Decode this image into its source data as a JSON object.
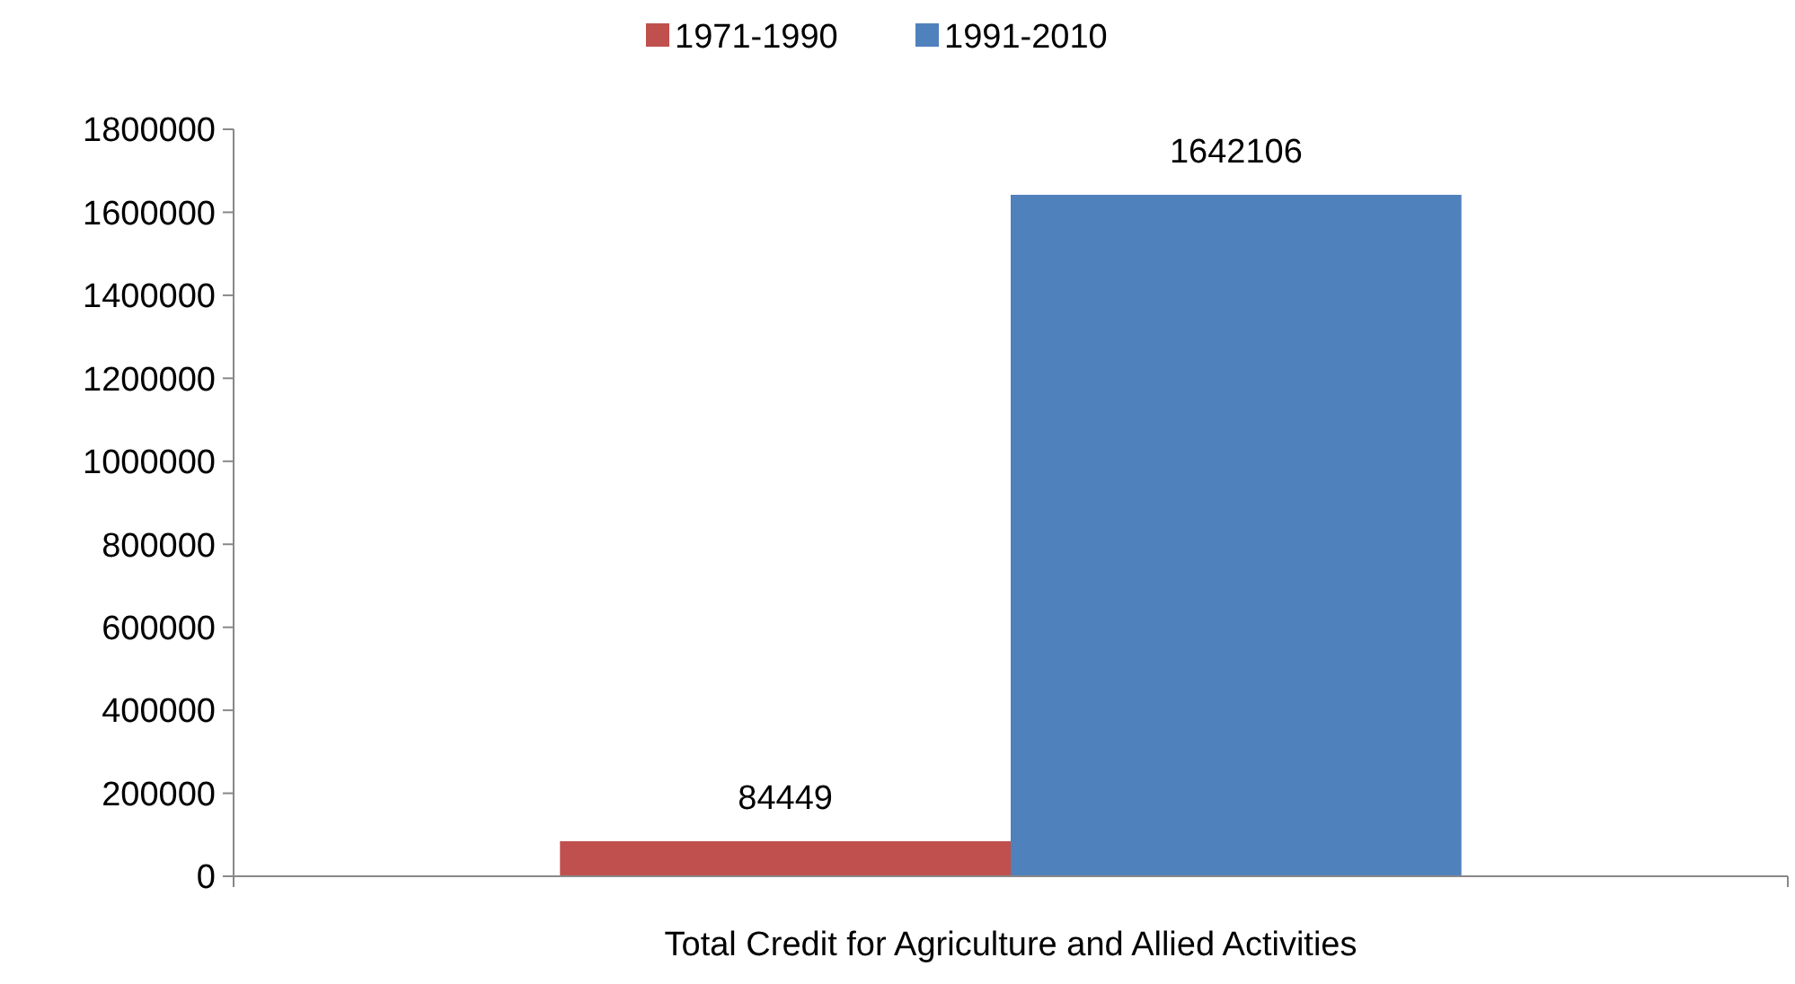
{
  "chart_data": {
    "type": "bar",
    "categories": [
      "Total Credit for Agriculture and Allied Activities"
    ],
    "series": [
      {
        "name": "1971-1990",
        "color": "#c0504d",
        "values": [
          84449
        ]
      },
      {
        "name": "1991-2010",
        "color": "#4f81bd",
        "values": [
          1642106
        ]
      }
    ],
    "ylim": [
      0,
      1800000
    ],
    "yticks": [
      0,
      200000,
      400000,
      600000,
      800000,
      1000000,
      1200000,
      1400000,
      1600000,
      1800000
    ],
    "data_labels": true,
    "legend": "top",
    "grid": false
  }
}
